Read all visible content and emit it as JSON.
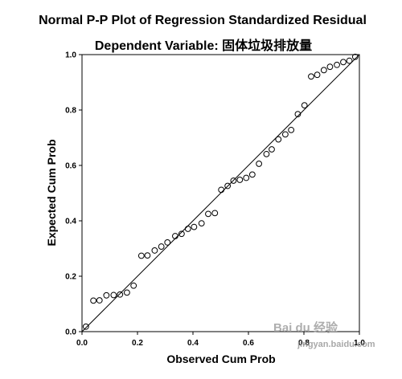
{
  "chart_data": {
    "type": "scatter",
    "title": "Normal P-P Plot of Regression Standardized Residual",
    "subtitle": "Dependent Variable: 固体垃圾排放量",
    "xlabel": "Observed Cum Prob",
    "ylabel": "Expected Cum Prob",
    "xlim": [
      0,
      1
    ],
    "ylim": [
      0,
      1
    ],
    "x_ticks": [
      "0.0",
      "0.2",
      "0.4",
      "0.6",
      "0.8",
      "1.0"
    ],
    "y_ticks": [
      "0.0",
      "0.2",
      "0.4",
      "0.6",
      "0.8",
      "1.0"
    ],
    "grid": false,
    "legend": "none",
    "reference_line": {
      "from": [
        0,
        0
      ],
      "to": [
        1,
        1
      ]
    },
    "x": [
      0.014,
      0.041,
      0.063,
      0.088,
      0.114,
      0.137,
      0.162,
      0.186,
      0.214,
      0.236,
      0.262,
      0.286,
      0.308,
      0.336,
      0.359,
      0.382,
      0.404,
      0.431,
      0.455,
      0.479,
      0.502,
      0.525,
      0.546,
      0.569,
      0.592,
      0.614,
      0.638,
      0.665,
      0.684,
      0.708,
      0.733,
      0.754,
      0.778,
      0.802,
      0.826,
      0.848,
      0.872,
      0.894,
      0.919,
      0.942,
      0.964,
      0.985
    ],
    "y": [
      0.018,
      0.112,
      0.113,
      0.131,
      0.132,
      0.134,
      0.141,
      0.166,
      0.274,
      0.275,
      0.293,
      0.307,
      0.322,
      0.345,
      0.353,
      0.371,
      0.378,
      0.391,
      0.425,
      0.428,
      0.512,
      0.526,
      0.545,
      0.548,
      0.555,
      0.567,
      0.606,
      0.641,
      0.658,
      0.694,
      0.712,
      0.728,
      0.785,
      0.817,
      0.921,
      0.927,
      0.944,
      0.956,
      0.963,
      0.973,
      0.978,
      0.992
    ]
  },
  "watermark": {
    "brand": "Bai du 经验",
    "url": "jingyan.baidu.com"
  },
  "colors": {
    "background": "#ffffff",
    "plot_frame": "#000000",
    "markers": "#000000"
  }
}
